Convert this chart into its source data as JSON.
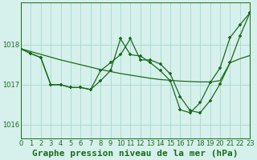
{
  "title": "Graphe pression niveau de la mer (hPa)",
  "bg_color": "#d6f0ec",
  "grid_color": "#a8d8cc",
  "line_color": "#1a6b1a",
  "xlim": [
    0,
    23
  ],
  "ylim": [
    1015.65,
    1019.05
  ],
  "yticks": [
    1016,
    1017,
    1018
  ],
  "xticks": [
    0,
    1,
    2,
    3,
    4,
    5,
    6,
    7,
    8,
    9,
    10,
    11,
    12,
    13,
    14,
    15,
    16,
    17,
    18,
    19,
    20,
    21,
    22,
    23
  ],
  "series1_x": [
    0,
    1,
    2,
    3,
    4,
    5,
    6,
    7,
    8,
    9,
    10,
    11,
    12,
    13,
    14,
    15,
    16,
    17,
    18,
    19,
    20,
    21,
    22,
    23
  ],
  "series1_y": [
    1017.9,
    1017.83,
    1017.76,
    1017.69,
    1017.62,
    1017.56,
    1017.5,
    1017.44,
    1017.38,
    1017.33,
    1017.28,
    1017.24,
    1017.2,
    1017.16,
    1017.13,
    1017.11,
    1017.09,
    1017.08,
    1017.07,
    1017.07,
    1017.1,
    1017.55,
    1017.65,
    1017.73
  ],
  "series2_x": [
    0,
    1,
    2,
    3,
    4,
    5,
    6,
    7,
    8,
    9,
    10,
    11,
    12,
    13,
    14,
    15,
    16,
    17,
    18,
    19,
    20,
    21,
    22,
    23
  ],
  "series2_y": [
    1017.9,
    1017.78,
    1017.68,
    1017.0,
    1017.0,
    1016.93,
    1016.93,
    1016.88,
    1017.1,
    1017.35,
    1018.15,
    1017.75,
    1017.72,
    1017.55,
    1017.35,
    1017.1,
    1016.37,
    1016.3,
    1016.55,
    1017.05,
    1017.42,
    1018.18,
    1018.5,
    1018.8
  ],
  "series3_x": [
    0,
    1,
    2,
    3,
    4,
    5,
    6,
    7,
    8,
    9,
    10,
    11,
    12,
    13,
    14,
    15,
    16,
    17,
    18,
    19,
    20,
    21,
    22,
    23
  ],
  "series3_y": [
    1017.9,
    1017.78,
    1017.68,
    1017.0,
    1017.0,
    1016.93,
    1016.93,
    1016.88,
    1017.35,
    1017.55,
    1017.75,
    1018.15,
    1017.62,
    1017.62,
    1017.52,
    1017.27,
    1016.7,
    1016.35,
    1016.3,
    1016.6,
    1017.02,
    1017.55,
    1018.22,
    1018.8
  ],
  "title_fontsize": 8,
  "tick_fontsize": 6,
  "figwidth": 3.2,
  "figheight": 2.0,
  "dpi": 100
}
